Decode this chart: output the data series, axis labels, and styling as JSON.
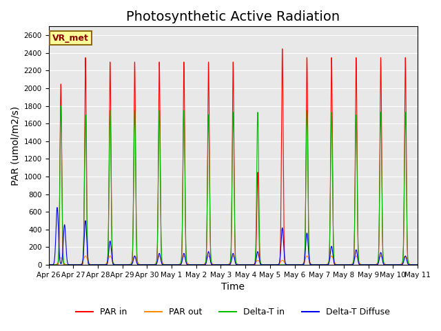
{
  "title": "Photosynthetic Active Radiation",
  "xlabel": "Time",
  "ylabel": "PAR (umol/m2/s)",
  "ylim": [
    0,
    2700
  ],
  "yticks": [
    0,
    200,
    400,
    600,
    800,
    1000,
    1200,
    1400,
    1600,
    1800,
    2000,
    2200,
    2400,
    2600
  ],
  "background_color": "#ffffff",
  "plot_bg_color": "#e8e8e8",
  "label_box": "VR_met",
  "legend_labels": [
    "PAR in",
    "PAR out",
    "Delta-T in",
    "Delta-T Diffuse"
  ],
  "legend_colors": [
    "#ff0000",
    "#ff8c00",
    "#00bb00",
    "#0000ee"
  ],
  "day_labels": [
    "Apr 26",
    "Apr 27",
    "Apr 28",
    "Apr 29",
    "Apr 30",
    "May 1",
    "May 2",
    "May 3",
    "May 4",
    "May 5",
    "May 6",
    "May 7",
    "May 8",
    "May 9",
    "May 10",
    "May 11"
  ],
  "par_in_peaks": [
    2050,
    2350,
    2300,
    2300,
    2300,
    2300,
    2300,
    2300,
    1050,
    2450,
    2350,
    2350,
    2350,
    2350,
    2350,
    0
  ],
  "par_out_peaks": [
    80,
    100,
    100,
    100,
    100,
    100,
    100,
    100,
    50,
    50,
    100,
    100,
    100,
    100,
    100,
    0
  ],
  "delta_t_peaks": [
    1800,
    1700,
    1750,
    1750,
    1750,
    1750,
    1700,
    1730,
    1730,
    0,
    1750,
    1730,
    1700,
    1730,
    1730,
    0
  ],
  "delta_d_peaks": [
    650,
    500,
    270,
    100,
    130,
    130,
    150,
    130,
    150,
    420,
    360,
    210,
    170,
    140,
    100,
    0
  ],
  "title_fontsize": 14,
  "label_fontsize": 10,
  "n_days": 15,
  "n_points_per_day": 288
}
